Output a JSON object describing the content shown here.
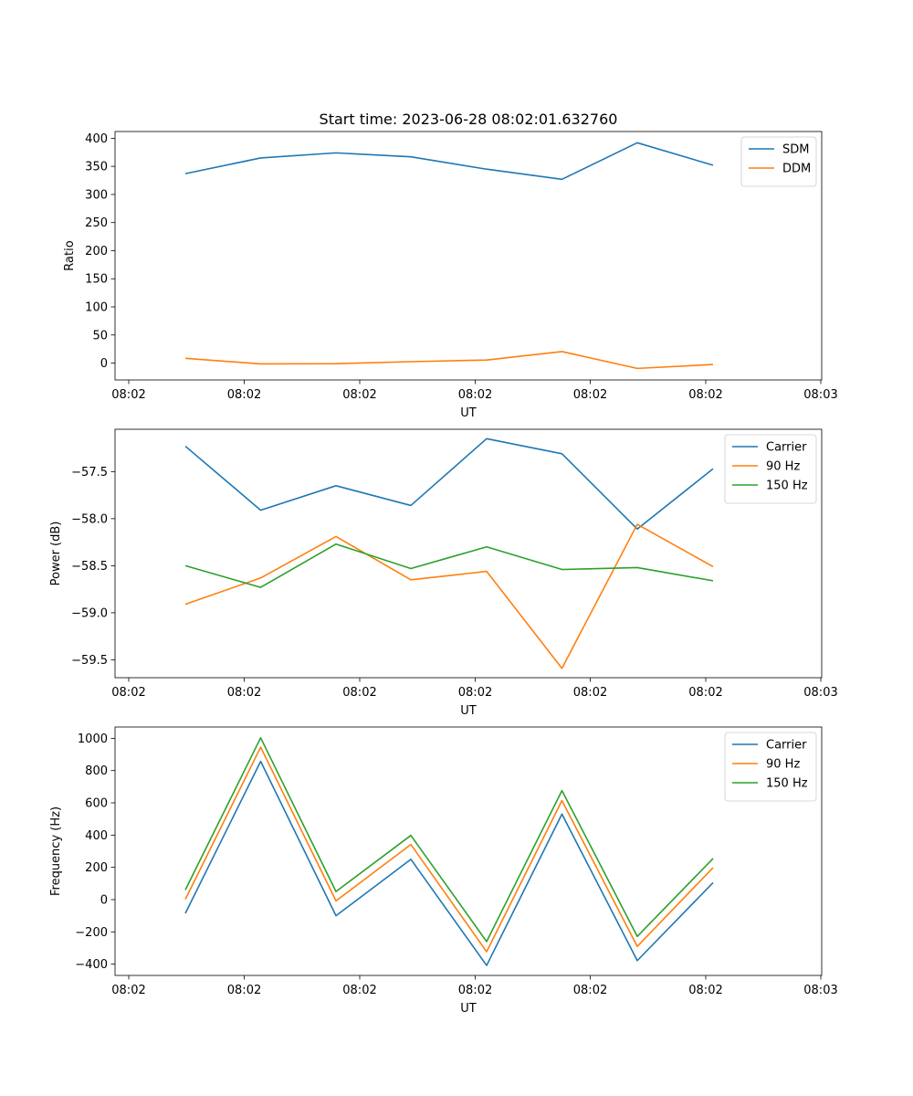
{
  "figure_title": "Start time: 2023-06-28 08:02:01.632760",
  "colors": {
    "blue": "#1f77b4",
    "orange": "#ff7f0e",
    "green": "#2ca02c"
  },
  "chart_data": [
    {
      "type": "line",
      "title": "Start time: 2023-06-28 08:02:01.632760",
      "xlabel": "UT",
      "ylabel": "Ratio",
      "xticks": [
        "08:02",
        "08:02",
        "08:02",
        "08:02",
        "08:02",
        "08:02",
        "08:03"
      ],
      "yticks": [
        0,
        50,
        100,
        150,
        200,
        250,
        300,
        350,
        400
      ],
      "ylim": [
        -30,
        412
      ],
      "legend": "top-right",
      "grid": false,
      "series": [
        {
          "name": "SDM",
          "color": "#1f77b4",
          "values": [
            337,
            365,
            374,
            367,
            345,
            327,
            392,
            352
          ]
        },
        {
          "name": "DDM",
          "color": "#ff7f0e",
          "values": [
            8.5,
            -1.5,
            -1,
            2.5,
            5.5,
            20.5,
            -9.5,
            -2.5
          ]
        }
      ]
    },
    {
      "type": "line",
      "title": "",
      "xlabel": "UT",
      "ylabel": "Power (dB)",
      "xticks": [
        "08:02",
        "08:02",
        "08:02",
        "08:02",
        "08:02",
        "08:02",
        "08:03"
      ],
      "yticks": [
        -57.5,
        -58.0,
        -58.5,
        -59.0,
        -59.5
      ],
      "ytick_labels": [
        "−57.5",
        "−58.0",
        "−58.5",
        "−59.0",
        "−59.5"
      ],
      "ylim": [
        -59.69,
        -57.05
      ],
      "legend": "top-right",
      "grid": false,
      "series": [
        {
          "name": "Carrier",
          "color": "#1f77b4",
          "values": [
            -57.23,
            -57.91,
            -57.65,
            -57.86,
            -57.15,
            -57.31,
            -58.11,
            -57.47
          ]
        },
        {
          "name": "90 Hz",
          "color": "#ff7f0e",
          "values": [
            -58.91,
            -58.63,
            -58.19,
            -58.65,
            -58.56,
            -59.59,
            -58.06,
            -58.51
          ]
        },
        {
          "name": "150 Hz",
          "color": "#2ca02c",
          "values": [
            -58.5,
            -58.73,
            -58.27,
            -58.53,
            -58.3,
            -58.54,
            -58.52,
            -58.66
          ]
        }
      ]
    },
    {
      "type": "line",
      "title": "",
      "xlabel": "UT",
      "ylabel": "Frequency (Hz)",
      "xticks": [
        "08:02",
        "08:02",
        "08:02",
        "08:02",
        "08:02",
        "08:02",
        "08:03"
      ],
      "yticks": [
        1000,
        800,
        600,
        400,
        200,
        0,
        -200,
        -400
      ],
      "ytick_labels": [
        "1000",
        "800",
        "600",
        "400",
        "200",
        "0",
        "−200",
        "−400"
      ],
      "ylim": [
        -470,
        1070
      ],
      "legend": "top-right",
      "grid": false,
      "series": [
        {
          "name": "Carrier",
          "color": "#1f77b4",
          "values": [
            -85,
            857,
            -100,
            250,
            -408,
            530,
            -378,
            105
          ]
        },
        {
          "name": "90 Hz",
          "color": "#ff7f0e",
          "values": [
            2,
            945,
            -8,
            342,
            -323,
            614,
            -290,
            198
          ]
        },
        {
          "name": "150 Hz",
          "color": "#2ca02c",
          "values": [
            60,
            1003,
            50,
            398,
            -260,
            676,
            -228,
            255
          ]
        }
      ]
    }
  ]
}
